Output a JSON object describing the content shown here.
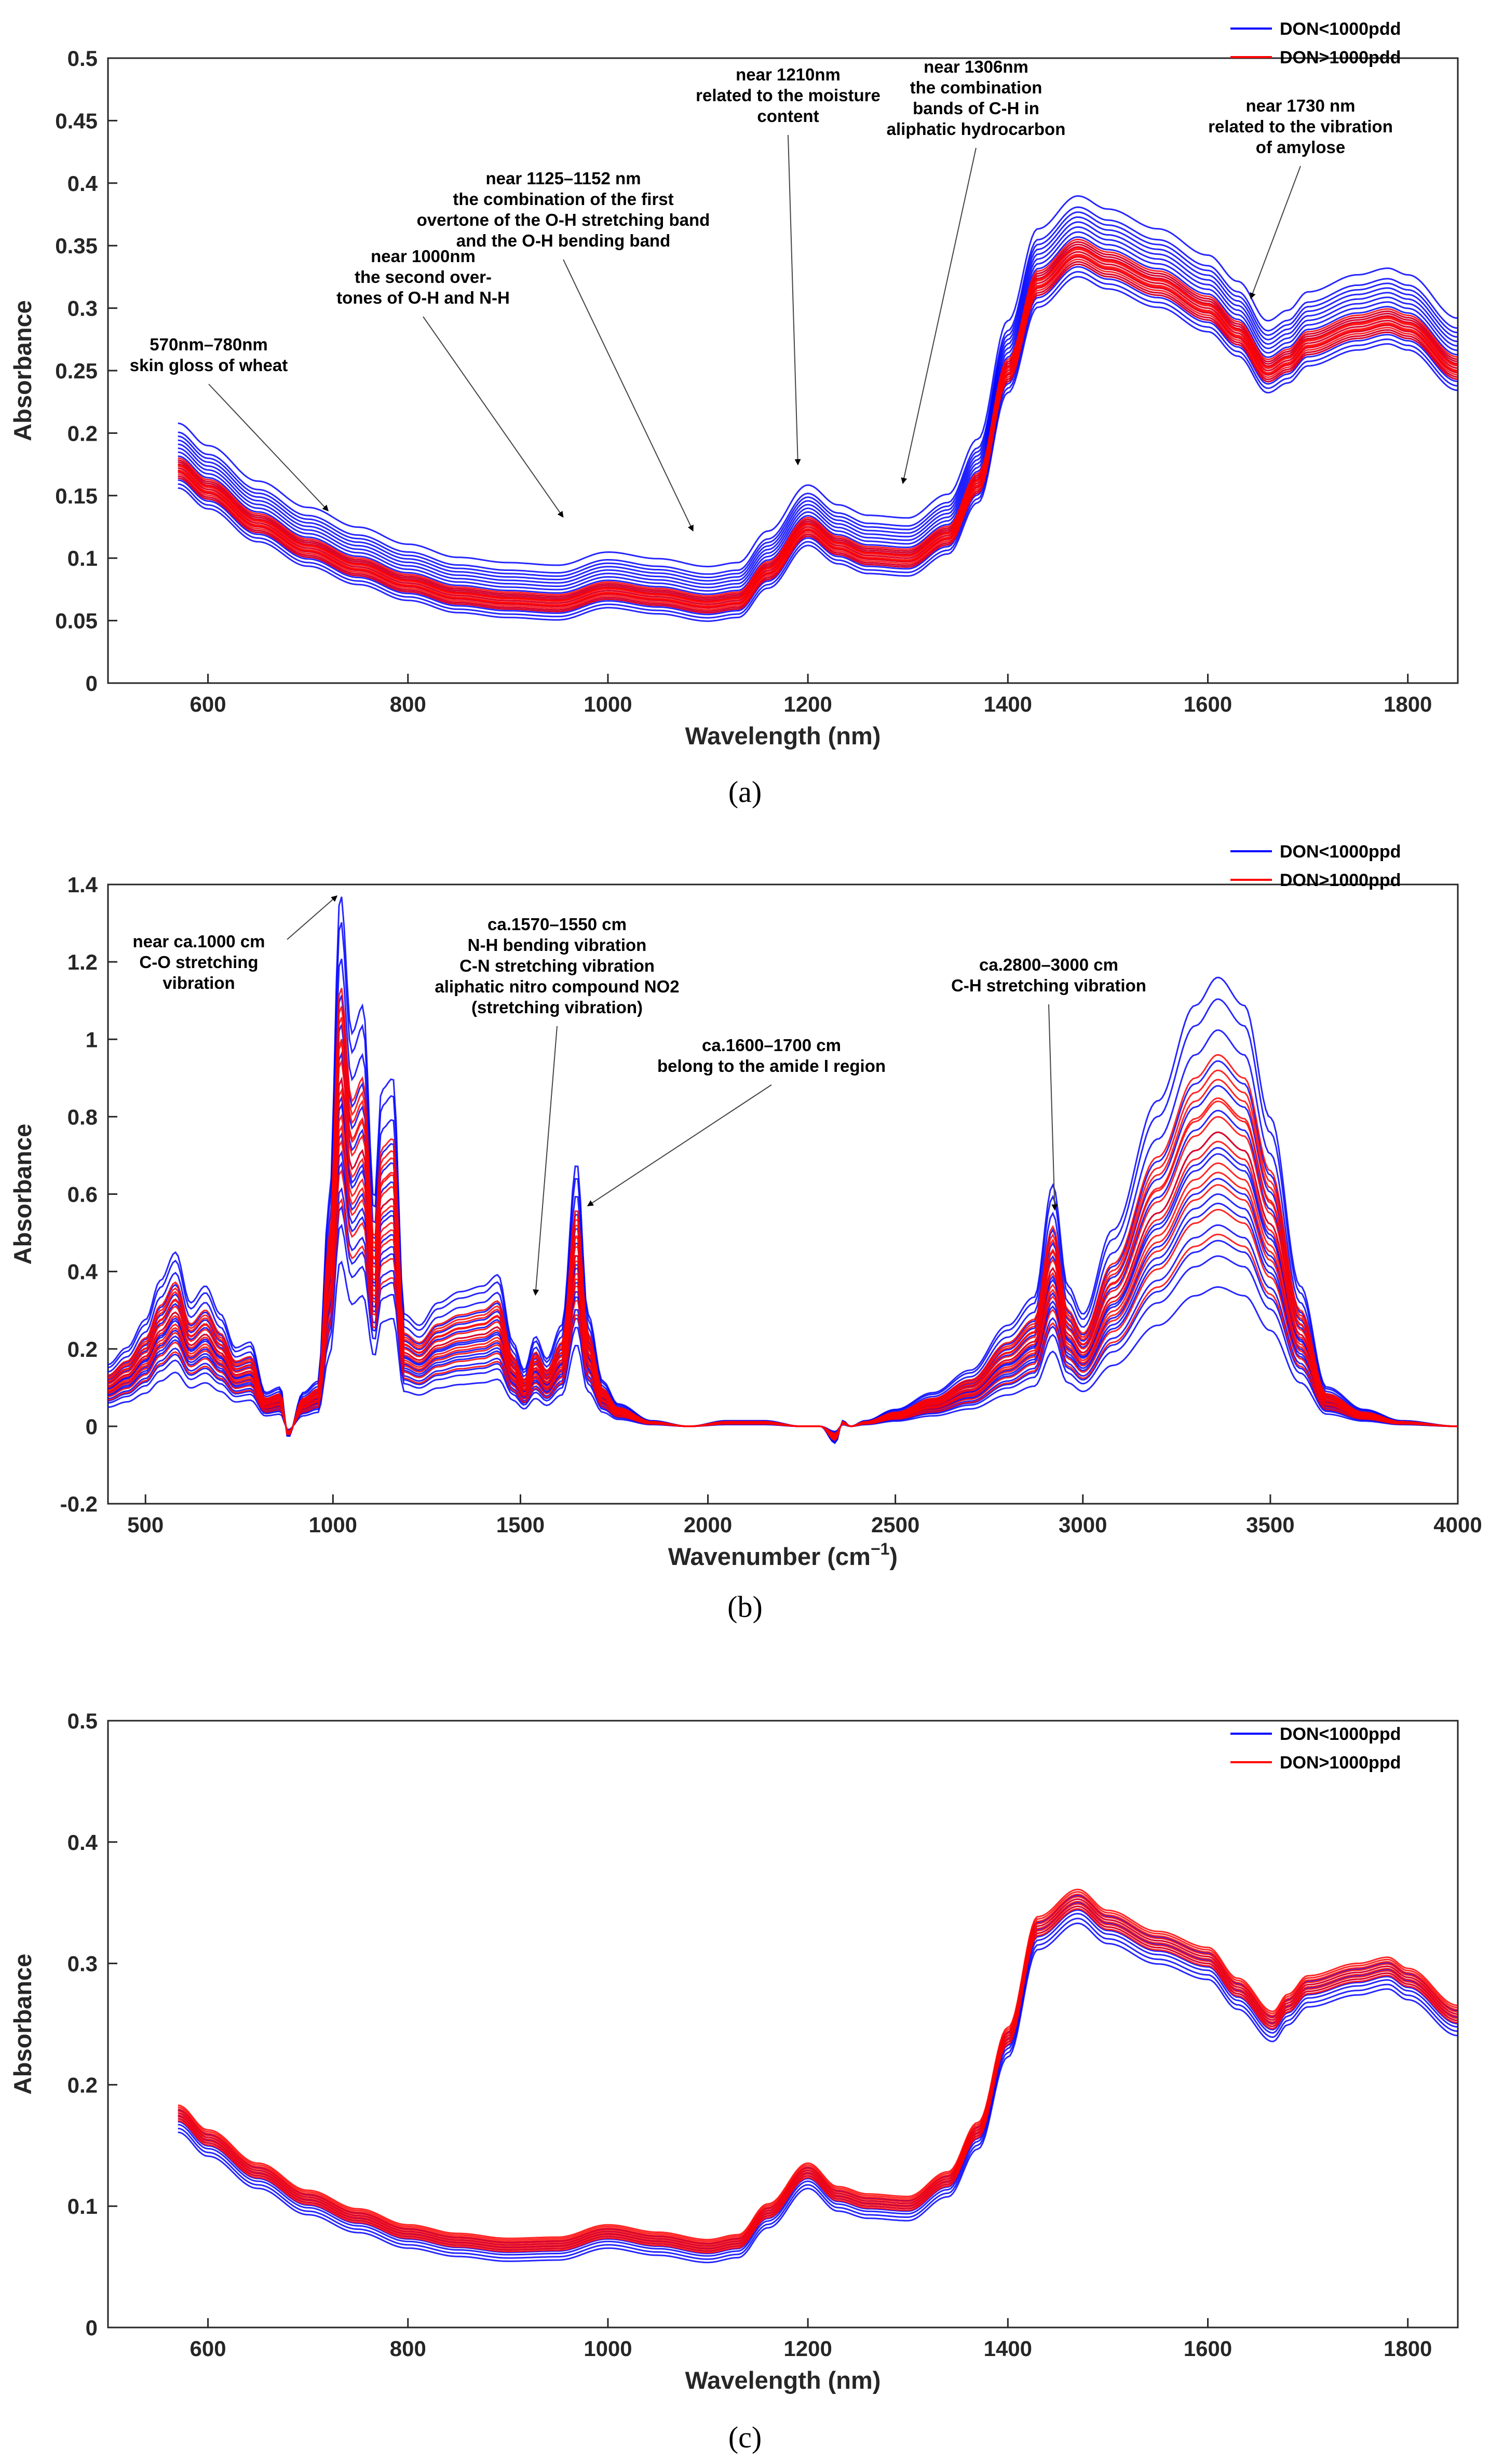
{
  "colors": {
    "blue": "#0000ff",
    "red": "#ff0000",
    "axis": "#262626"
  },
  "chart_data": [
    {
      "id": "a",
      "type": "line",
      "caption": "(a)",
      "xlabel": "Wavelength (nm)",
      "ylabel": "Absorbance",
      "xlim": [
        500,
        1850
      ],
      "ylim": [
        0,
        0.5
      ],
      "xticks": [
        600,
        800,
        1000,
        1200,
        1400,
        1600,
        1800
      ],
      "yticks": [
        0,
        0.05,
        0.1,
        0.15,
        0.2,
        0.25,
        0.3,
        0.35,
        0.4,
        0.45,
        0.5
      ],
      "legend": {
        "placement": "top-right",
        "entries": [
          {
            "label": "DON<1000pdd",
            "color": "#0000ff"
          },
          {
            "label": "DON>1000pdd",
            "color": "#ff0000"
          }
        ]
      },
      "base_curve": {
        "x": [
          570,
          600,
          650,
          700,
          750,
          800,
          850,
          900,
          950,
          1000,
          1050,
          1100,
          1130,
          1160,
          1200,
          1230,
          1260,
          1300,
          1340,
          1370,
          1400,
          1430,
          1470,
          1500,
          1550,
          1600,
          1630,
          1660,
          1680,
          1700,
          1750,
          1780,
          1800,
          1850
        ],
        "y": [
          0.172,
          0.155,
          0.128,
          0.108,
          0.093,
          0.08,
          0.07,
          0.066,
          0.064,
          0.074,
          0.069,
          0.063,
          0.066,
          0.09,
          0.125,
          0.11,
          0.102,
          0.1,
          0.118,
          0.16,
          0.25,
          0.32,
          0.345,
          0.335,
          0.32,
          0.3,
          0.28,
          0.25,
          0.258,
          0.272,
          0.285,
          0.29,
          0.285,
          0.252
        ]
      },
      "series": [
        {
          "name": "DON<1000pdd",
          "color": "#0000ff",
          "offsets": [
            -0.012,
            -0.008,
            -0.004,
            0.0,
            0.004,
            0.008,
            0.012,
            0.016,
            0.02,
            0.024,
            0.028,
            0.032,
            0.036,
            -0.016,
            -0.02,
            0.045,
            -0.01,
            0.006
          ]
        },
        {
          "name": "DON>1000pdd",
          "color": "#ff0000",
          "offsets": [
            -0.008,
            -0.006,
            -0.004,
            -0.002,
            0.0,
            0.002,
            0.004,
            0.006,
            0.008,
            -0.01,
            0.01,
            -0.003,
            0.003
          ]
        }
      ],
      "annotations": [
        {
          "lines": [
            "570nm–780nm",
            "skin gloss of wheat"
          ],
          "point": [
            720,
            0.138
          ]
        },
        {
          "lines": [
            "near 1000nm",
            "the second over-",
            "tones of O-H and N-H"
          ],
          "point": [
            955,
            0.133
          ]
        },
        {
          "lines": [
            "near 1125–1152 nm",
            "the combination of the first",
            "overtone of the O-H stretching band",
            "and the O-H bending band"
          ],
          "point": [
            1085,
            0.122
          ]
        },
        {
          "lines": [
            "near 1210nm",
            "related to the moisture",
            "content"
          ],
          "point": [
            1190,
            0.175
          ]
        },
        {
          "lines": [
            "near 1306nm",
            "the combination",
            "bands of C-H in",
            "aliphatic hydrocarbon"
          ],
          "point": [
            1295,
            0.16
          ]
        },
        {
          "lines": [
            "near 1730 nm",
            "related to the vibration",
            "of amylose"
          ],
          "point": [
            1643,
            0.308
          ]
        }
      ]
    },
    {
      "id": "b",
      "type": "line",
      "caption": "(b)",
      "xlabel": "Wavenumber (cm",
      "xlabel_sup": "−1",
      "xlabel_end": ")",
      "ylabel": "Absorbance",
      "xlim": [
        400,
        4000
      ],
      "ylim": [
        -0.2,
        1.4
      ],
      "xticks": [
        500,
        1000,
        1500,
        2000,
        2500,
        3000,
        3500,
        4000
      ],
      "yticks": [
        -0.2,
        0,
        0.2,
        0.4,
        0.6,
        0.8,
        1,
        1.2,
        1.4
      ],
      "legend": {
        "placement": "top-right",
        "entries": [
          {
            "label": "DON<1000ppd",
            "color": "#0000ff"
          },
          {
            "label": "DON>1000ppd",
            "color": "#ff0000"
          }
        ]
      },
      "base_curve": {
        "x": [
          400,
          450,
          500,
          540,
          580,
          620,
          660,
          700,
          740,
          780,
          820,
          860,
          880,
          920,
          960,
          990,
          1020,
          1050,
          1080,
          1110,
          1130,
          1160,
          1190,
          1230,
          1280,
          1340,
          1400,
          1440,
          1480,
          1510,
          1540,
          1570,
          1610,
          1650,
          1680,
          1720,
          1760,
          1850,
          1950,
          2050,
          2150,
          2250,
          2300,
          2340,
          2360,
          2380,
          2420,
          2500,
          2600,
          2700,
          2800,
          2870,
          2920,
          2960,
          3000,
          3080,
          3200,
          3300,
          3360,
          3430,
          3500,
          3580,
          3650,
          3750,
          3850,
          4000
        ],
        "y": [
          0.11,
          0.14,
          0.19,
          0.26,
          0.31,
          0.22,
          0.25,
          0.2,
          0.14,
          0.15,
          0.06,
          0.07,
          -0.02,
          0.06,
          0.08,
          0.4,
          0.95,
          0.7,
          0.75,
          0.4,
          0.6,
          0.62,
          0.2,
          0.18,
          0.22,
          0.24,
          0.25,
          0.27,
          0.15,
          0.1,
          0.16,
          0.12,
          0.18,
          0.47,
          0.2,
          0.08,
          0.04,
          0.01,
          0.0,
          0.01,
          0.01,
          0.0,
          0.0,
          -0.03,
          0.01,
          0.0,
          0.01,
          0.03,
          0.06,
          0.1,
          0.18,
          0.23,
          0.43,
          0.25,
          0.2,
          0.35,
          0.58,
          0.75,
          0.8,
          0.75,
          0.55,
          0.25,
          0.07,
          0.03,
          0.01,
          0.0
        ]
      },
      "series": [
        {
          "name": "DON<1000ppd",
          "color": "#0000ff",
          "scales": [
            0.45,
            0.55,
            0.65,
            0.72,
            0.8,
            0.88,
            0.95,
            1.02,
            1.1,
            1.18,
            1.28,
            1.38,
            1.45,
            0.6,
            0.75,
            0.9
          ]
        },
        {
          "name": "DON>1000ppd",
          "color": "#ff0000",
          "scales": [
            0.7,
            0.78,
            0.85,
            0.92,
            1.0,
            1.06,
            1.12,
            1.2,
            0.62,
            0.95,
            1.05,
            0.82,
            1.15
          ]
        }
      ],
      "annotations": [
        {
          "lines": [
            "near ca.1000 cm",
            "C-O stretching",
            "vibration"
          ],
          "point": [
            1010,
            1.37
          ],
          "from": "right"
        },
        {
          "lines": [
            "ca.1570–1550 cm",
            "N-H bending vibration",
            "C-N stretching vibration",
            "aliphatic nitro compound NO2",
            "(stretching vibration)"
          ],
          "point": [
            1540,
            0.34
          ]
        },
        {
          "lines": [
            "ca.1600–1700 cm",
            "belong to the amide I region"
          ],
          "point": [
            1680,
            0.57
          ]
        },
        {
          "lines": [
            "ca.2800–3000 cm",
            "C-H stretching vibration"
          ],
          "point": [
            2925,
            0.56
          ]
        }
      ]
    },
    {
      "id": "c",
      "type": "line",
      "caption": "(c)",
      "xlabel": "Wavelength (nm)",
      "ylabel": "Absorbance",
      "xlim": [
        500,
        1850
      ],
      "ylim": [
        0,
        0.5
      ],
      "xticks": [
        600,
        800,
        1000,
        1200,
        1400,
        1600,
        1800
      ],
      "yticks": [
        0,
        0.1,
        0.2,
        0.3,
        0.4,
        0.5
      ],
      "legend": {
        "placement": "top-right",
        "entries": [
          {
            "label": "DON<1000ppd",
            "color": "#0000ff"
          },
          {
            "label": "DON>1000ppd",
            "color": "#ff0000"
          }
        ]
      },
      "base_curve": {
        "x": [
          570,
          600,
          650,
          700,
          750,
          800,
          850,
          900,
          950,
          1000,
          1050,
          1100,
          1130,
          1160,
          1200,
          1230,
          1260,
          1300,
          1340,
          1370,
          1400,
          1430,
          1470,
          1500,
          1550,
          1600,
          1630,
          1665,
          1680,
          1700,
          1750,
          1780,
          1800,
          1850
        ],
        "y": [
          0.172,
          0.152,
          0.125,
          0.103,
          0.088,
          0.075,
          0.068,
          0.064,
          0.065,
          0.075,
          0.069,
          0.063,
          0.067,
          0.092,
          0.125,
          0.106,
          0.1,
          0.098,
          0.118,
          0.158,
          0.235,
          0.325,
          0.347,
          0.33,
          0.313,
          0.3,
          0.275,
          0.248,
          0.262,
          0.277,
          0.287,
          0.292,
          0.283,
          0.253
        ]
      },
      "series": [
        {
          "name": "DON<1000ppd",
          "color": "#0000ff",
          "offsets": [
            -0.014,
            -0.01,
            -0.006,
            -0.003,
            0.0,
            0.003,
            0.006,
            0.009
          ]
        },
        {
          "name": "DON>1000ppd",
          "color": "#ff0000",
          "offsets": [
            -0.002,
            0.0,
            0.002,
            0.004,
            0.006,
            0.008,
            0.01,
            0.012,
            0.014
          ]
        }
      ],
      "annotations": []
    }
  ]
}
